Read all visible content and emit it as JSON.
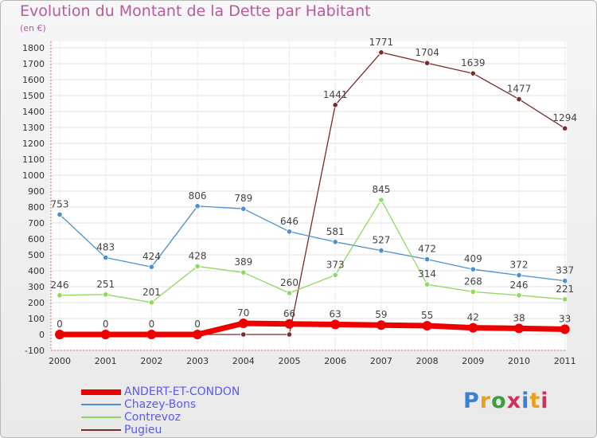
{
  "title": "Evolution du Montant de la Dette par Habitant",
  "unit": "(en €)",
  "logo": {
    "text": "Proxiti",
    "colors": [
      "#3a7fd0",
      "#e8a020",
      "#3aa040",
      "#d03060",
      "#3a7fd0",
      "#e8a020",
      "#d03060"
    ]
  },
  "chart_data": {
    "type": "line",
    "x": [
      "2000",
      "2001",
      "2002",
      "2003",
      "2004",
      "2005",
      "2006",
      "2007",
      "2008",
      "2009",
      "2010",
      "2011"
    ],
    "ylim": [
      -100,
      1800
    ],
    "yticks": [
      "-100",
      "0",
      "100",
      "200",
      "300",
      "400",
      "500",
      "600",
      "700",
      "800",
      "900",
      "1000",
      "1100",
      "1200",
      "1300",
      "1400",
      "1500",
      "1600",
      "1700",
      "1800"
    ],
    "grid": true,
    "legend": "bottom-left",
    "series": [
      {
        "name": "Pugieu",
        "color": "#7a2c2c",
        "values": [
          0,
          0,
          0,
          0,
          0,
          0,
          1441,
          1771,
          1704,
          1639,
          1477,
          1294
        ],
        "labels": [
          "",
          "",
          "",
          "",
          "",
          "",
          "1441",
          "1771",
          "1704",
          "1639",
          "1477",
          "1294"
        ]
      },
      {
        "name": "Chazey-Bons",
        "color": "#4e90cc",
        "values": [
          753,
          483,
          424,
          806,
          789,
          646,
          581,
          527,
          472,
          409,
          372,
          337
        ],
        "labels": [
          "753",
          "483",
          "424",
          "806",
          "789",
          "646",
          "581",
          "527",
          "472",
          "409",
          "372",
          "337"
        ]
      },
      {
        "name": "Contrevoz",
        "color": "#90d860",
        "values": [
          246,
          251,
          201,
          428,
          389,
          260,
          373,
          845,
          314,
          268,
          246,
          221
        ],
        "labels": [
          "246",
          "251",
          "201",
          "428",
          "389",
          "260",
          "373",
          "845",
          "314",
          "268",
          "246",
          "221"
        ]
      },
      {
        "name": "ANDERT-ET-CONDON",
        "color": "#ee0000",
        "values": [
          0,
          0,
          0,
          0,
          70,
          66,
          63,
          59,
          55,
          42,
          38,
          33
        ],
        "labels": [
          "0",
          "0",
          "0",
          "0",
          "70",
          "66",
          "63",
          "59",
          "55",
          "42",
          "38",
          "33"
        ]
      }
    ],
    "legend_order": [
      "ANDERT-ET-CONDON",
      "Chazey-Bons",
      "Contrevoz",
      "Pugieu"
    ]
  }
}
